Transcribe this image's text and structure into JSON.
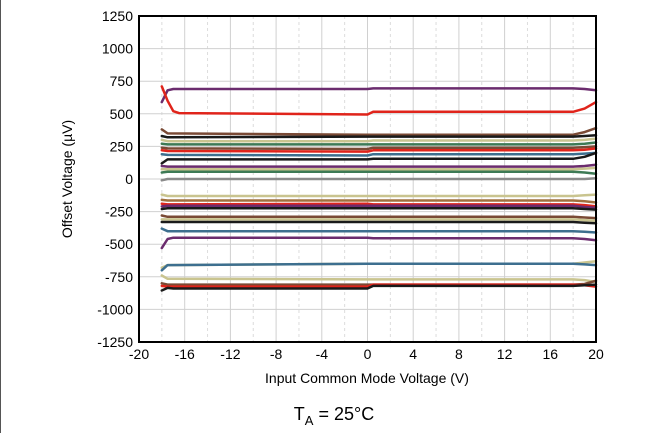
{
  "chart_data": {
    "type": "line",
    "xlabel": "Input Common Mode Voltage (V)",
    "ylabel": "Offset Voltage (µV)",
    "xlim": [
      -20,
      20
    ],
    "ylim": [
      -1250,
      1250
    ],
    "x_ticks": [
      "-20",
      "-16",
      "-12",
      "-8",
      "-4",
      "0",
      "4",
      "8",
      "12",
      "16",
      "20"
    ],
    "x_tick_values": [
      -20,
      -16,
      -12,
      -8,
      -4,
      0,
      4,
      8,
      12,
      16,
      20
    ],
    "y_ticks": [
      "1250",
      "1000",
      "750",
      "500",
      "250",
      "0",
      "-250",
      "-500",
      "-750",
      "-1000",
      "-1250"
    ],
    "y_tick_values": [
      1250,
      1000,
      750,
      500,
      250,
      0,
      -250,
      -500,
      -750,
      -1000,
      -1250
    ],
    "grid": true,
    "annotation": {
      "base": "T",
      "subscript": "A",
      "rest": " = 25°C"
    },
    "series": [
      {
        "color": "#6b2c6e",
        "x": [
          -18,
          -17.5,
          -17,
          0,
          0.5,
          18,
          19,
          20
        ],
        "y": [
          590,
          680,
          690,
          690,
          695,
          695,
          690,
          680
        ]
      },
      {
        "color": "#e0241b",
        "x": [
          -18,
          -17.5,
          -17,
          -16.5,
          0,
          0.5,
          18,
          19,
          20
        ],
        "y": [
          710,
          600,
          520,
          505,
          495,
          515,
          515,
          540,
          590
        ]
      },
      {
        "color": "#7a4a35",
        "x": [
          -18,
          -17.5,
          0,
          0.5,
          18,
          19,
          20
        ],
        "y": [
          380,
          350,
          340,
          340,
          340,
          360,
          390
        ]
      },
      {
        "color": "#1a1a1a",
        "x": [
          -18,
          -17.5,
          0,
          0.5,
          18,
          19,
          20
        ],
        "y": [
          330,
          320,
          325,
          325,
          325,
          330,
          335
        ]
      },
      {
        "color": "#c9c48f",
        "x": [
          -18,
          -17.5,
          0,
          0.5,
          18,
          19,
          20
        ],
        "y": [
          300,
          290,
          290,
          295,
          295,
          300,
          310
        ]
      },
      {
        "color": "#3d7a55",
        "x": [
          -18,
          -17.5,
          0,
          0.5,
          18,
          19,
          20
        ],
        "y": [
          270,
          265,
          265,
          265,
          265,
          270,
          280
        ]
      },
      {
        "color": "#7a4a35",
        "x": [
          -18,
          -17.5,
          0,
          0.5,
          18,
          19,
          20
        ],
        "y": [
          240,
          235,
          230,
          240,
          240,
          245,
          250
        ]
      },
      {
        "color": "#e0241b",
        "x": [
          -18,
          -17.5,
          0,
          0.5,
          18,
          19,
          20
        ],
        "y": [
          220,
          215,
          210,
          220,
          220,
          225,
          235
        ]
      },
      {
        "color": "#3d6f8f",
        "x": [
          -18,
          -17.5,
          0,
          0.5,
          18,
          19,
          20
        ],
        "y": [
          190,
          185,
          180,
          190,
          190,
          195,
          200
        ]
      },
      {
        "color": "#1a1a1a",
        "x": [
          -18,
          -17.5,
          0,
          0.5,
          18,
          19,
          20
        ],
        "y": [
          120,
          150,
          150,
          155,
          155,
          170,
          200
        ]
      },
      {
        "color": "#6b2c6e",
        "x": [
          -18,
          -17.5,
          0,
          0.5,
          18,
          19,
          20
        ],
        "y": [
          100,
          95,
          95,
          95,
          95,
          100,
          110
        ]
      },
      {
        "color": "#c9c48f",
        "x": [
          -18,
          -17.5,
          0,
          0.5,
          18,
          19,
          20
        ],
        "y": [
          75,
          75,
          75,
          75,
          75,
          80,
          85
        ]
      },
      {
        "color": "#3d7a55",
        "x": [
          -18,
          -17.5,
          0,
          0.5,
          18,
          19,
          20
        ],
        "y": [
          50,
          55,
          55,
          55,
          55,
          50,
          40
        ]
      },
      {
        "color": "#8a8a8a",
        "x": [
          -18,
          -17.5,
          0,
          0.5,
          18,
          19,
          20
        ],
        "y": [
          -10,
          0,
          0,
          0,
          0,
          0,
          5
        ]
      },
      {
        "color": "#c9c48f",
        "x": [
          -18,
          -17.5,
          0,
          0.5,
          18,
          19,
          20
        ],
        "y": [
          -120,
          -130,
          -130,
          -130,
          -130,
          -125,
          -120
        ]
      },
      {
        "color": "#a0703f",
        "x": [
          -18,
          -17.5,
          0,
          0.5,
          18,
          19,
          20
        ],
        "y": [
          -160,
          -165,
          -165,
          -165,
          -165,
          -170,
          -180
        ]
      },
      {
        "color": "#e0241b",
        "x": [
          -18,
          -17.5,
          0,
          0.5,
          18,
          19,
          20
        ],
        "y": [
          -190,
          -195,
          -190,
          -195,
          -195,
          -200,
          -210
        ]
      },
      {
        "color": "#6b2c6e",
        "x": [
          -18,
          -17.5,
          0,
          0.5,
          18,
          19,
          20
        ],
        "y": [
          -210,
          -205,
          -205,
          -205,
          -205,
          -215,
          -220
        ]
      },
      {
        "color": "#1a1a1a",
        "x": [
          -18,
          -17.5,
          0,
          0.5,
          18,
          19,
          20
        ],
        "y": [
          -230,
          -225,
          -225,
          -225,
          -225,
          -230,
          -235
        ]
      },
      {
        "color": "#7a4a35",
        "x": [
          -18,
          -17.5,
          0,
          0.5,
          18,
          19,
          20
        ],
        "y": [
          -280,
          -290,
          -290,
          -290,
          -290,
          -295,
          -300
        ]
      },
      {
        "color": "#c9c48f",
        "x": [
          -18,
          -17.5,
          0,
          0.5,
          18,
          19,
          20
        ],
        "y": [
          -310,
          -310,
          -310,
          -310,
          -310,
          -315,
          -320
        ]
      },
      {
        "color": "#1a1a1a",
        "x": [
          -18,
          -17.5,
          0,
          0.5,
          18,
          19,
          20
        ],
        "y": [
          -330,
          -330,
          -330,
          -330,
          -330,
          -335,
          -340
        ]
      },
      {
        "color": "#3d6f8f",
        "x": [
          -18,
          -17.5,
          0,
          0.5,
          18,
          19,
          20
        ],
        "y": [
          -380,
          -400,
          -400,
          -400,
          -400,
          -405,
          -410
        ]
      },
      {
        "color": "#6b2c6e",
        "x": [
          -18,
          -17.5,
          -17,
          0,
          0.5,
          18,
          19,
          20
        ],
        "y": [
          -530,
          -460,
          -450,
          -450,
          -455,
          -455,
          -460,
          -470
        ]
      },
      {
        "color": "#c9c48f",
        "x": [
          -18,
          -17.5,
          0,
          0.5,
          18,
          19,
          20
        ],
        "y": [
          -680,
          -660,
          -650,
          -650,
          -650,
          -640,
          -630
        ]
      },
      {
        "color": "#3d6f8f",
        "x": [
          -18,
          -17.5,
          0,
          0.5,
          18,
          19,
          20
        ],
        "y": [
          -700,
          -660,
          -650,
          -650,
          -650,
          -655,
          -660
        ]
      },
      {
        "color": "#c9c48f",
        "x": [
          -18,
          -17.5,
          0,
          0.5,
          18,
          19,
          20
        ],
        "y": [
          -740,
          -765,
          -770,
          -770,
          -770,
          -775,
          -790
        ]
      },
      {
        "color": "#7a4a35",
        "x": [
          -18,
          -17.5,
          0,
          0.5,
          18,
          19,
          20
        ],
        "y": [
          -800,
          -810,
          -810,
          -810,
          -810,
          -805,
          -780
        ]
      },
      {
        "color": "#e0241b",
        "x": [
          -18,
          -17.5,
          0,
          0.5,
          18,
          19,
          20
        ],
        "y": [
          -820,
          -825,
          -825,
          -810,
          -810,
          -815,
          -825
        ]
      },
      {
        "color": "#1a1a1a",
        "x": [
          -18,
          -17.5,
          -17,
          0,
          0.5,
          18,
          19,
          20
        ],
        "y": [
          -855,
          -835,
          -840,
          -840,
          -820,
          -820,
          -815,
          -810
        ]
      }
    ]
  }
}
